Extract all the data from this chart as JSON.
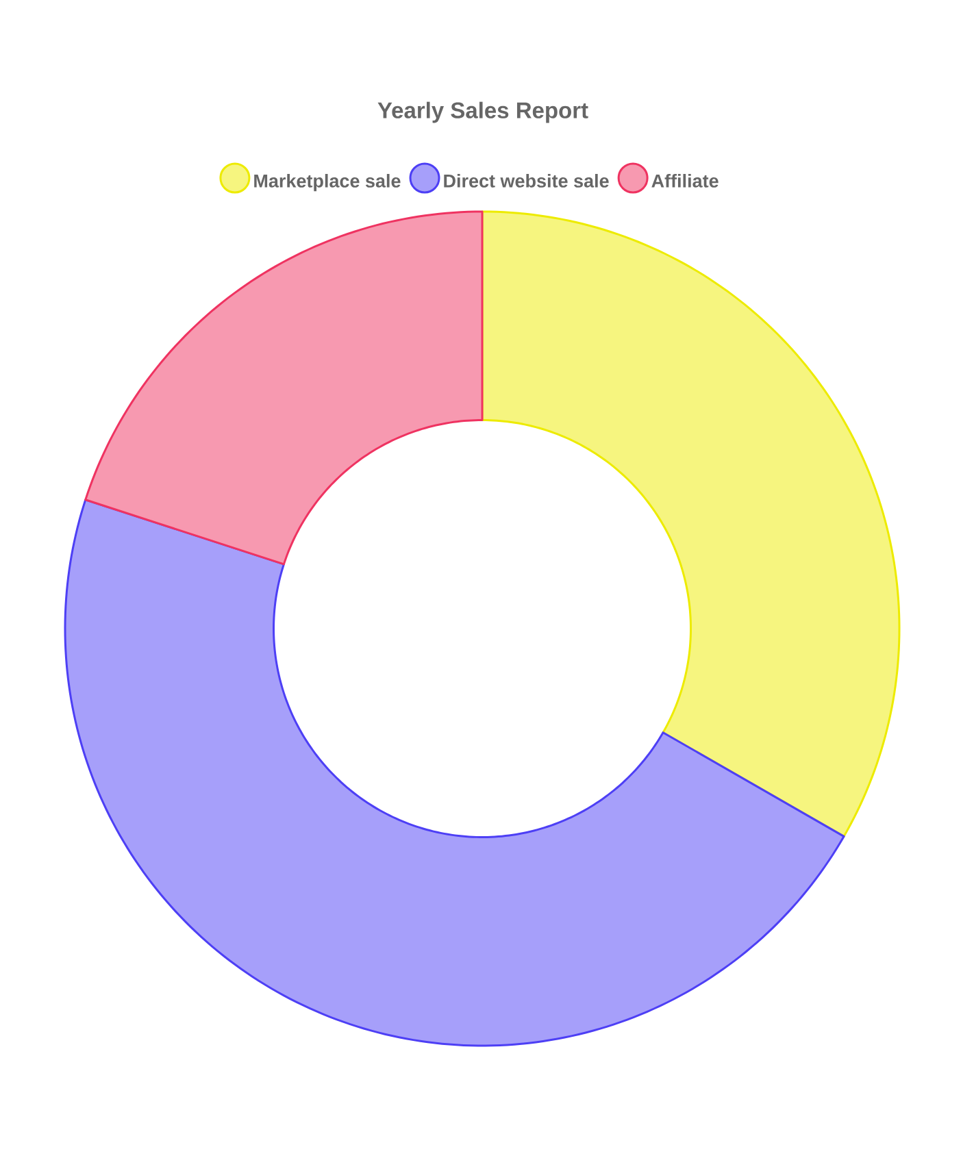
{
  "chart_data": {
    "type": "donut",
    "title": "Yearly Sales Report",
    "categories": [
      "Marketplace sale",
      "Direct website sale",
      "Affiliate"
    ],
    "values": [
      33.3,
      46.7,
      20
    ],
    "colors": [
      "#f6f57f",
      "#a69ffa",
      "#f799b0"
    ],
    "legend": "top"
  }
}
